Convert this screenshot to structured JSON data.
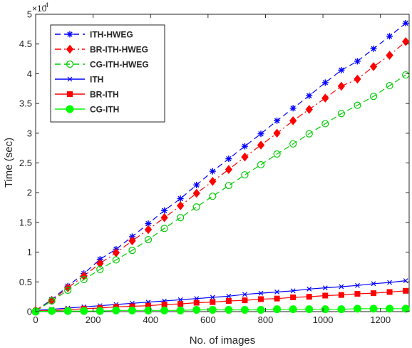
{
  "chart_data": {
    "type": "line",
    "title": "",
    "xlabel": "No. of images",
    "ylabel": "Time (sec)",
    "exponent_label": "×10",
    "exponent_value": "4",
    "xlim": [
      0,
      1300
    ],
    "ylim": [
      0,
      5
    ],
    "xticks": [
      0,
      200,
      400,
      600,
      800,
      1000,
      1200
    ],
    "yticks": [
      0,
      0.5,
      1,
      1.5,
      2,
      2.5,
      3,
      3.5,
      4,
      4.5,
      5
    ],
    "xtick_labels": [
      "0",
      "200",
      "400",
      "600",
      "800",
      "1000",
      "1200"
    ],
    "ytick_labels": [
      "0",
      "0.5",
      "1",
      "1.5",
      "2",
      "2.5",
      "3",
      "3.5",
      "4",
      "4.5",
      "5"
    ],
    "grid": false,
    "legend_position": "top-left",
    "x": [
      0,
      56,
      112,
      168,
      224,
      280,
      336,
      392,
      448,
      504,
      560,
      616,
      672,
      728,
      784,
      840,
      896,
      952,
      1008,
      1064,
      1120,
      1176,
      1232,
      1288
    ],
    "series": [
      {
        "name": "ITH-HWEG",
        "color": "#0000ff",
        "dash": "dashed",
        "marker": "asterisk",
        "values": [
          0.02,
          0.2,
          0.43,
          0.64,
          0.88,
          1.05,
          1.26,
          1.48,
          1.7,
          1.9,
          2.13,
          2.36,
          2.57,
          2.78,
          2.99,
          3.21,
          3.42,
          3.63,
          3.85,
          4.06,
          4.21,
          4.42,
          4.63,
          4.85
        ]
      },
      {
        "name": "BR-ITH-HWEG",
        "color": "#ff0000",
        "dash": "dashdot",
        "marker": "diamond",
        "values": [
          0.02,
          0.19,
          0.4,
          0.6,
          0.81,
          0.99,
          1.19,
          1.38,
          1.58,
          1.78,
          1.99,
          2.19,
          2.39,
          2.6,
          2.8,
          3.0,
          3.21,
          3.4,
          3.59,
          3.79,
          3.91,
          4.12,
          4.31,
          4.54
        ]
      },
      {
        "name": "CG-ITH-HWEG",
        "color": "#00cc00",
        "dash": "dashed",
        "marker": "circle",
        "values": [
          0.01,
          0.18,
          0.36,
          0.54,
          0.71,
          0.87,
          1.03,
          1.21,
          1.4,
          1.58,
          1.76,
          1.94,
          2.12,
          2.3,
          2.47,
          2.65,
          2.82,
          2.99,
          3.16,
          3.33,
          3.47,
          3.62,
          3.8,
          3.98
        ]
      },
      {
        "name": "ITH",
        "color": "#0000ff",
        "dash": "solid",
        "marker": "x",
        "values": [
          0.02,
          0.04,
          0.06,
          0.08,
          0.1,
          0.12,
          0.14,
          0.16,
          0.18,
          0.2,
          0.22,
          0.24,
          0.26,
          0.29,
          0.31,
          0.33,
          0.35,
          0.38,
          0.4,
          0.42,
          0.44,
          0.47,
          0.49,
          0.52
        ]
      },
      {
        "name": "BR-ITH",
        "color": "#ff0000",
        "dash": "solid",
        "marker": "square",
        "values": [
          0.01,
          0.02,
          0.03,
          0.05,
          0.06,
          0.08,
          0.09,
          0.1,
          0.12,
          0.13,
          0.15,
          0.16,
          0.18,
          0.19,
          0.21,
          0.22,
          0.24,
          0.25,
          0.27,
          0.28,
          0.3,
          0.31,
          0.33,
          0.35
        ]
      },
      {
        "name": "CG-ITH",
        "color": "#00ff00",
        "dash": "solid",
        "marker": "filled-circle",
        "values": [
          0.0,
          0.01,
          0.01,
          0.01,
          0.01,
          0.02,
          0.02,
          0.02,
          0.02,
          0.02,
          0.03,
          0.03,
          0.03,
          0.03,
          0.03,
          0.04,
          0.04,
          0.04,
          0.04,
          0.04,
          0.05,
          0.05,
          0.05,
          0.05
        ]
      }
    ]
  }
}
